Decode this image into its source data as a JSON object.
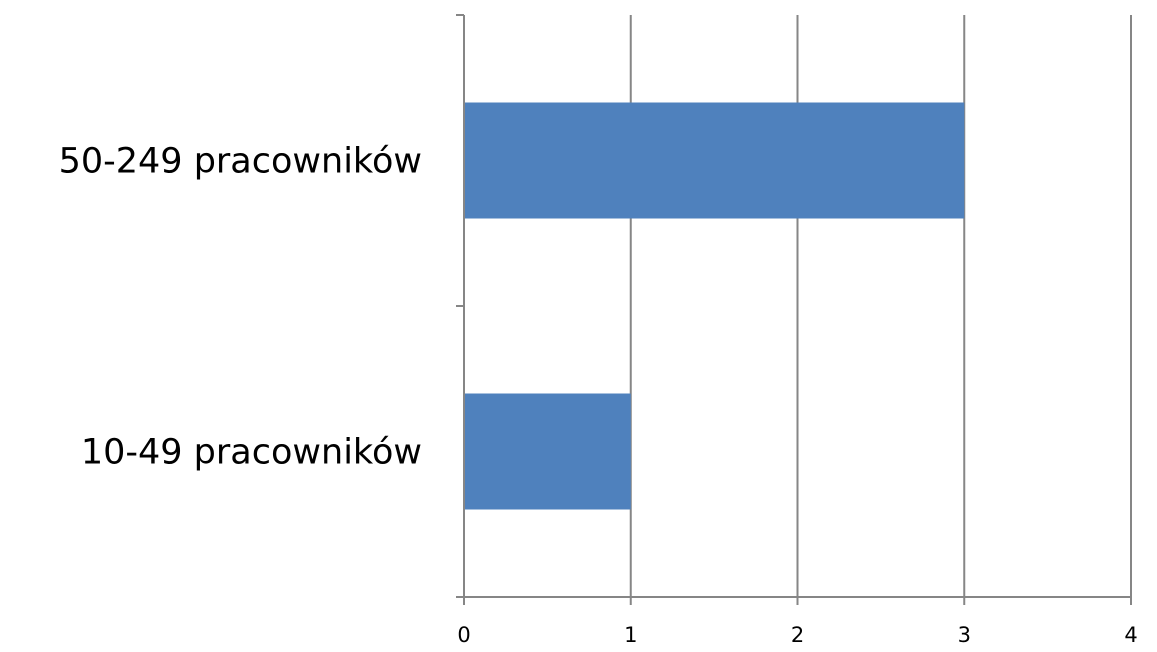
{
  "chart_data": {
    "type": "bar",
    "orientation": "horizontal",
    "categories": [
      "50-249 pracowników",
      "10-49 pracowników"
    ],
    "values": [
      3,
      1
    ],
    "title": "",
    "xlabel": "",
    "ylabel": "",
    "xlim": [
      0,
      4
    ],
    "x_ticks": [
      "0",
      "1",
      "2",
      "3",
      "4"
    ],
    "grid": true,
    "legend": "none",
    "colors": {
      "bar": "#4f81bd",
      "gridline": "#868686",
      "axis": "#868686"
    }
  }
}
